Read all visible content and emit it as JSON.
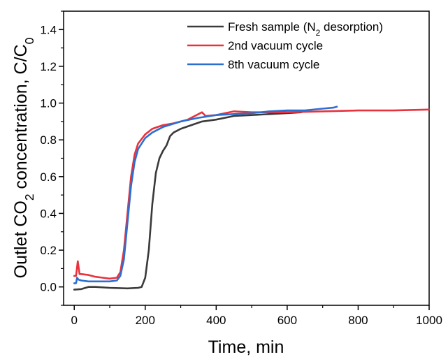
{
  "chart_data": {
    "type": "line",
    "title": "",
    "xlabel": "Time, min",
    "ylabel": "Outlet CO2 concentration, C/C0",
    "xlim": [
      -30,
      1000
    ],
    "ylim": [
      -0.1,
      1.5
    ],
    "xticks": [
      0,
      200,
      400,
      600,
      800,
      1000
    ],
    "yticks": [
      0.0,
      0.2,
      0.4,
      0.6,
      0.8,
      1.0,
      1.2,
      1.4
    ],
    "grid": false,
    "legend_position": "top-right",
    "series": [
      {
        "name": "Fresh sample (N2 desorption)",
        "color": "#3a3a3a",
        "points": [
          [
            0,
            -0.015
          ],
          [
            20,
            -0.012
          ],
          [
            40,
            0.0
          ],
          [
            60,
            0.0
          ],
          [
            100,
            -0.005
          ],
          [
            150,
            -0.008
          ],
          [
            180,
            -0.005
          ],
          [
            190,
            0.0
          ],
          [
            200,
            0.05
          ],
          [
            210,
            0.2
          ],
          [
            220,
            0.45
          ],
          [
            230,
            0.62
          ],
          [
            240,
            0.7
          ],
          [
            250,
            0.74
          ],
          [
            260,
            0.77
          ],
          [
            270,
            0.82
          ],
          [
            280,
            0.84
          ],
          [
            300,
            0.86
          ],
          [
            330,
            0.88
          ],
          [
            360,
            0.9
          ],
          [
            400,
            0.91
          ],
          [
            450,
            0.93
          ],
          [
            500,
            0.935
          ],
          [
            550,
            0.94
          ],
          [
            600,
            0.945
          ],
          [
            640,
            0.95
          ]
        ]
      },
      {
        "name": "2nd vacuum cycle",
        "color": "#e8323c",
        "points": [
          [
            0,
            0.06
          ],
          [
            5,
            0.06
          ],
          [
            10,
            0.14
          ],
          [
            15,
            0.07
          ],
          [
            20,
            0.07
          ],
          [
            40,
            0.065
          ],
          [
            60,
            0.055
          ],
          [
            80,
            0.05
          ],
          [
            100,
            0.045
          ],
          [
            120,
            0.05
          ],
          [
            130,
            0.08
          ],
          [
            140,
            0.2
          ],
          [
            150,
            0.4
          ],
          [
            160,
            0.6
          ],
          [
            170,
            0.72
          ],
          [
            180,
            0.78
          ],
          [
            200,
            0.83
          ],
          [
            220,
            0.86
          ],
          [
            250,
            0.88
          ],
          [
            280,
            0.89
          ],
          [
            320,
            0.91
          ],
          [
            350,
            0.94
          ],
          [
            360,
            0.95
          ],
          [
            370,
            0.93
          ],
          [
            400,
            0.935
          ],
          [
            450,
            0.955
          ],
          [
            500,
            0.95
          ],
          [
            550,
            0.95
          ],
          [
            600,
            0.95
          ],
          [
            700,
            0.955
          ],
          [
            800,
            0.96
          ],
          [
            900,
            0.96
          ],
          [
            1000,
            0.965
          ]
        ]
      },
      {
        "name": "8th vacuum cycle",
        "color": "#2c6fd1",
        "points": [
          [
            0,
            0.02
          ],
          [
            5,
            0.02
          ],
          [
            8,
            0.05
          ],
          [
            12,
            0.04
          ],
          [
            20,
            0.035
          ],
          [
            40,
            0.03
          ],
          [
            60,
            0.03
          ],
          [
            80,
            0.03
          ],
          [
            100,
            0.03
          ],
          [
            120,
            0.035
          ],
          [
            130,
            0.06
          ],
          [
            140,
            0.15
          ],
          [
            150,
            0.35
          ],
          [
            160,
            0.55
          ],
          [
            170,
            0.68
          ],
          [
            180,
            0.75
          ],
          [
            200,
            0.81
          ],
          [
            220,
            0.84
          ],
          [
            250,
            0.87
          ],
          [
            300,
            0.9
          ],
          [
            350,
            0.92
          ],
          [
            400,
            0.935
          ],
          [
            450,
            0.94
          ],
          [
            500,
            0.945
          ],
          [
            550,
            0.955
          ],
          [
            600,
            0.96
          ],
          [
            650,
            0.96
          ],
          [
            700,
            0.97
          ],
          [
            730,
            0.975
          ],
          [
            740,
            0.98
          ]
        ]
      }
    ]
  }
}
